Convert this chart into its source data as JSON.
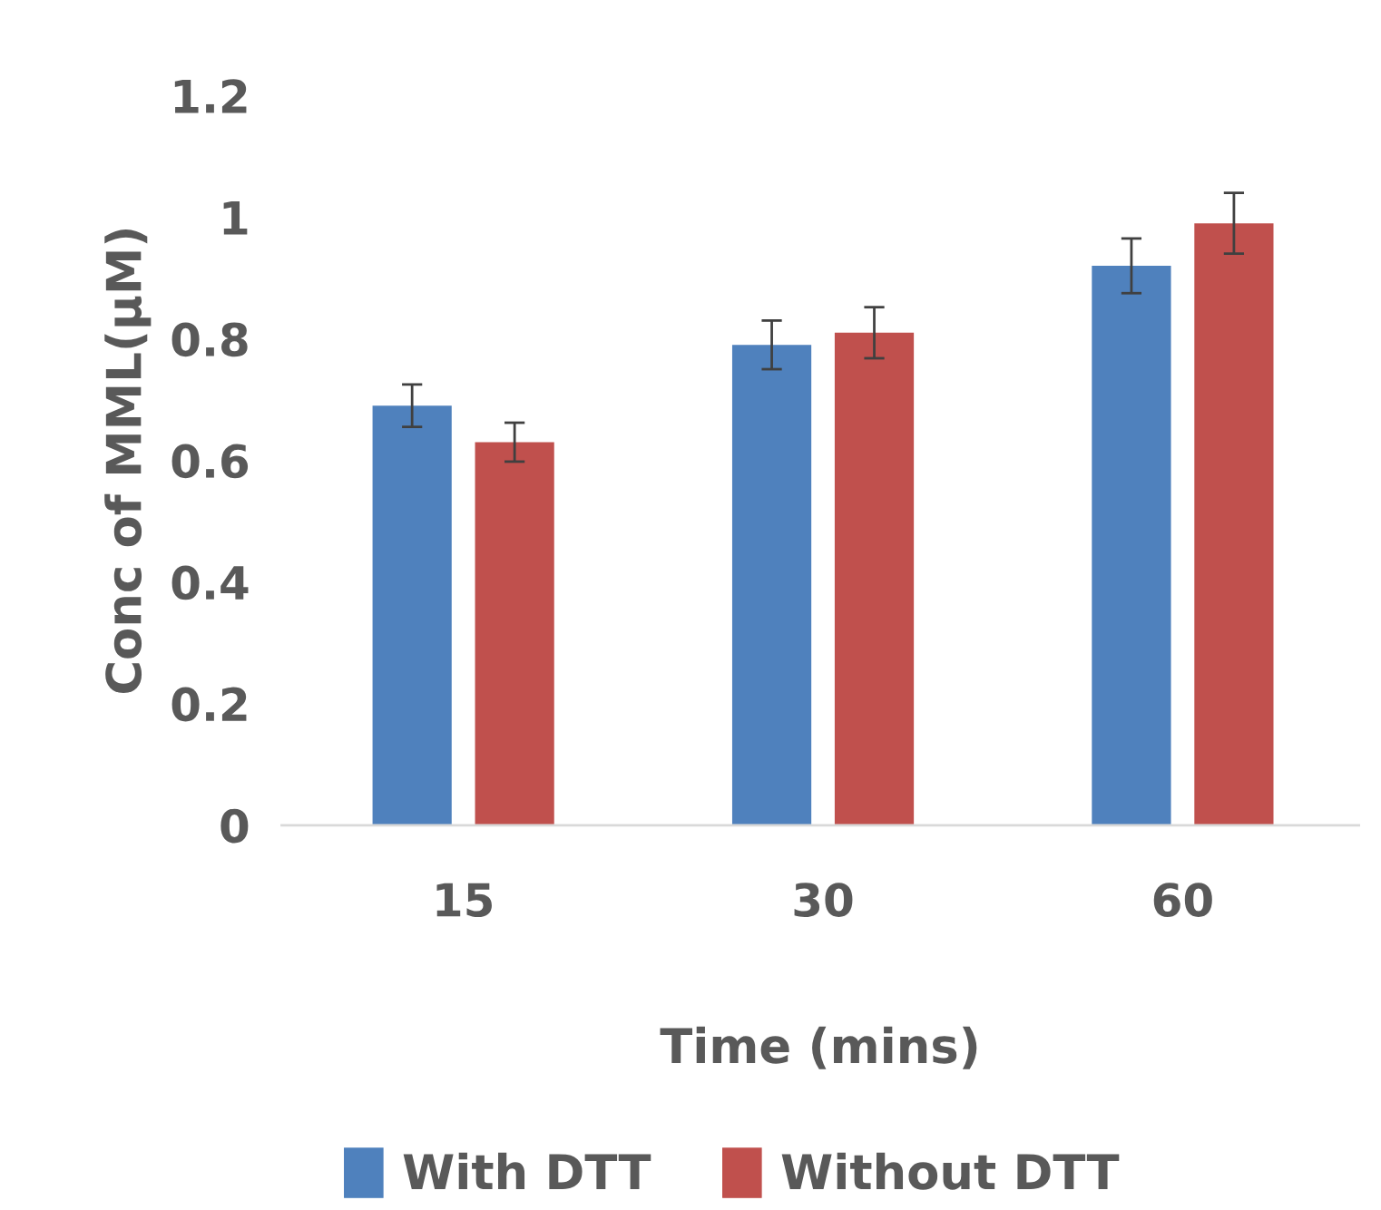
{
  "chart_data": {
    "type": "bar",
    "xlabel": "Time (mins)",
    "ylabel": "Conc of MML(µM)",
    "categories": [
      "15",
      "30",
      "60"
    ],
    "series": [
      {
        "name": "With DTT",
        "color": "#4f81bd",
        "values": [
          0.69,
          0.79,
          0.92
        ],
        "errors": [
          0.035,
          0.04,
          0.045
        ]
      },
      {
        "name": "Without DTT",
        "color": "#c0504d",
        "values": [
          0.63,
          0.81,
          0.99
        ],
        "errors": [
          0.032,
          0.042,
          0.05
        ]
      }
    ],
    "ylim": [
      0,
      1.2
    ],
    "yticks": [
      0,
      0.2,
      0.4,
      0.6,
      0.8,
      1,
      1.2
    ],
    "grid": false,
    "legend": "bottom"
  }
}
